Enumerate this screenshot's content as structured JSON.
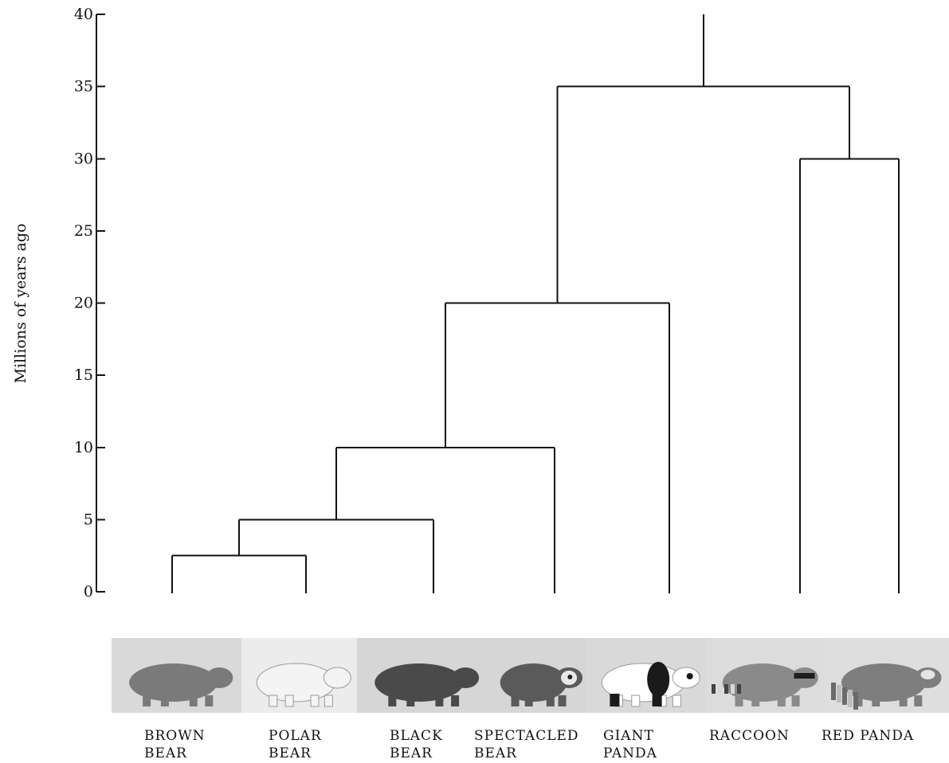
{
  "diagram": {
    "axis": {
      "label": "Millions of years ago",
      "min": 0,
      "max": 40,
      "ticks": [
        "0",
        "5",
        "10",
        "15",
        "20",
        "25",
        "30",
        "35",
        "40"
      ]
    },
    "taxa": [
      {
        "id": "brown",
        "line1": "BROWN",
        "line2": "BEAR",
        "icon": "brown-bear-icon",
        "coat": "#7a7a7a",
        "bg": "#d9d9d9"
      },
      {
        "id": "polar",
        "line1": "POLAR",
        "line2": "BEAR",
        "icon": "polar-bear-icon",
        "coat": "#f4f4f4",
        "bg": "#ececec"
      },
      {
        "id": "black",
        "line1": "BLACK",
        "line2": "BEAR",
        "icon": "black-bear-icon",
        "coat": "#4a4a4a",
        "bg": "#d6d6d6"
      },
      {
        "id": "spect",
        "line1": "SPECTACLED",
        "line2": "BEAR",
        "icon": "spectacled-bear-icon",
        "coat": "#5a5a5a",
        "bg": "#d6d6d6"
      },
      {
        "id": "giant",
        "line1": "GIANT",
        "line2": "PANDA",
        "icon": "giant-panda-icon",
        "coat": "#ffffff",
        "bg": "#d9d9d9"
      },
      {
        "id": "raccoon",
        "line1": "RACCOON",
        "line2": "",
        "icon": "raccoon-icon",
        "coat": "#8a8a8a",
        "bg": "#dcdcdc"
      },
      {
        "id": "redpanda",
        "line1": "RED PANDA",
        "line2": "",
        "icon": "red-panda-icon",
        "coat": "#7e7e7e",
        "bg": "#dedede"
      }
    ],
    "clades": [
      {
        "name": "brown-polar",
        "members": [
          "brown",
          "polar"
        ],
        "age": 2.5
      },
      {
        "name": "brown-polar-black",
        "members": [
          "brown-polar",
          "black"
        ],
        "age": 5
      },
      {
        "name": "ursine-spectacled",
        "members": [
          "brown-polar-black",
          "spect"
        ],
        "age": 10
      },
      {
        "name": "bears-giant-panda",
        "members": [
          "ursine-spectacled",
          "giant"
        ],
        "age": 20
      },
      {
        "name": "raccoon-red-panda",
        "members": [
          "raccoon",
          "redpanda"
        ],
        "age": 30
      },
      {
        "name": "root",
        "members": [
          "bears-giant-panda",
          "raccoon-red-panda"
        ],
        "age": 35
      }
    ],
    "root_extends_to": 40
  }
}
